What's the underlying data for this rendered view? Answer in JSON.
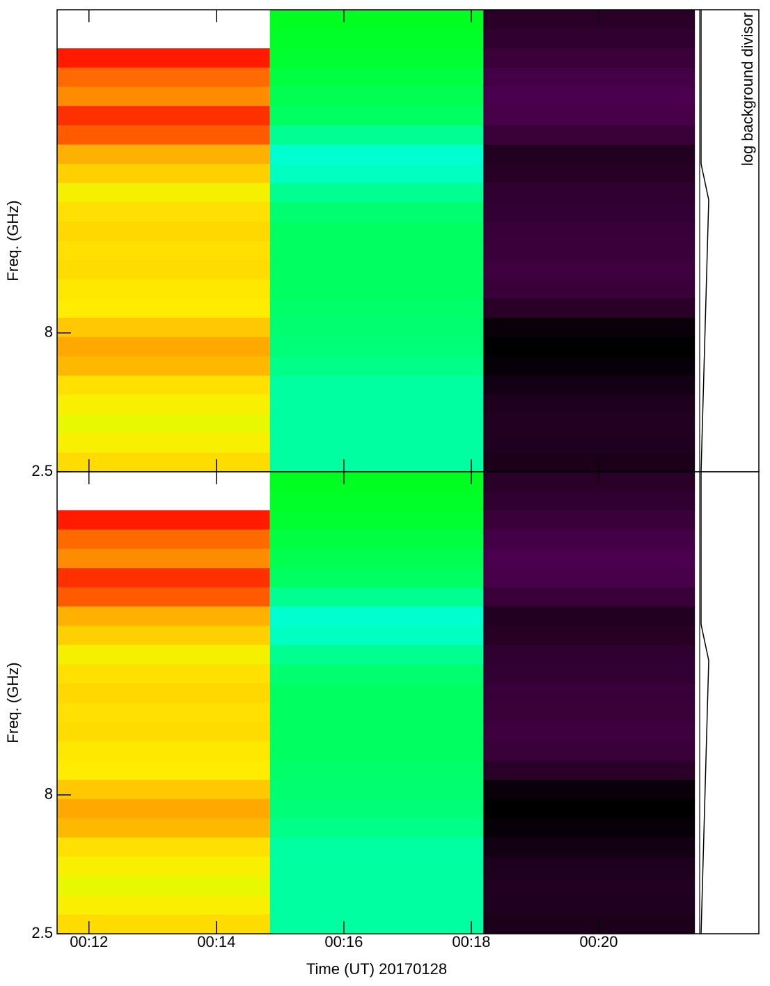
{
  "chart_data": [
    {
      "type": "heatmap",
      "ylabel": "Freq. (GHz)",
      "side_label": "log background divisor",
      "ylim": [
        2.5,
        20.8
      ],
      "yticks": [
        2.5,
        8.0
      ],
      "xlim": [
        11.5,
        21.53
      ],
      "xticks": [
        12,
        14,
        16,
        18,
        20
      ],
      "blocks": [
        {
          "start": 11.5,
          "end": 14.84,
          "colors": [
            null,
            null,
            "#ff1a00",
            "#ff6a00",
            "#ff8c00",
            "#ff3000",
            "#ff5a00",
            "#ffb000",
            "#ffd000",
            "#f4f000",
            "#ffe000",
            "#ffd800",
            "#ffe000",
            "#ffdc00",
            "#ffe800",
            "#ffec00",
            "#ffc800",
            "#ffa800",
            "#ffb800",
            "#ffe000",
            "#f8f000",
            "#e8f800",
            "#f8f000",
            "#ffdc00"
          ]
        },
        {
          "start": 14.84,
          "end": 18.19,
          "colors": [
            "#00ff20",
            "#00ff28",
            "#00ff30",
            "#00ff40",
            "#00ff50",
            "#00ff60",
            "#00ff90",
            "#00ffd0",
            "#00ffc0",
            "#00ff90",
            "#00ff70",
            "#00ff60",
            "#00ff60",
            "#00ff60",
            "#00ff60",
            "#00ff68",
            "#00ff70",
            "#00ff78",
            "#00ff88",
            "#00ffa0",
            "#00ffa0",
            "#00ffa0",
            "#00ffa0",
            "#00ffa0"
          ]
        },
        {
          "start": 18.19,
          "end": 21.51,
          "colors": [
            "#2a0028",
            "#300030",
            "#3a003a",
            "#440046",
            "#4a004e",
            "#480048",
            "#3a003a",
            "#220022",
            "#280026",
            "#300030",
            "#320032",
            "#380038",
            "#3a003a",
            "#3e003e",
            "#3a003a",
            "#2a0028",
            "#0a000a",
            "#000000",
            "#080008",
            "#140014",
            "#1e001e",
            "#220022",
            "#200020",
            "#1c001a"
          ]
        }
      ]
    },
    {
      "type": "heatmap",
      "ylabel": "Freq. (GHz)",
      "xlabel": "Time (UT) 20170128",
      "ylim": [
        2.5,
        20.8
      ],
      "yticks": [
        2.5,
        8.0
      ],
      "xlim": [
        11.5,
        21.53
      ],
      "xticks": [
        {
          "value": 12,
          "label": "00:12"
        },
        {
          "value": 14,
          "label": "00:14"
        },
        {
          "value": 16,
          "label": "00:16"
        },
        {
          "value": 18,
          "label": "00:18"
        },
        {
          "value": 20,
          "label": "00:20"
        }
      ],
      "blocks": [
        {
          "start": 11.5,
          "end": 14.84,
          "colors": [
            null,
            null,
            "#ff1a00",
            "#ff6a00",
            "#ff8c00",
            "#ff3000",
            "#ff5a00",
            "#ffb000",
            "#ffd000",
            "#f4f000",
            "#ffe000",
            "#ffd800",
            "#ffe000",
            "#ffdc00",
            "#ffe800",
            "#ffec00",
            "#ffc800",
            "#ffa800",
            "#ffb800",
            "#ffe000",
            "#f8f000",
            "#e8f800",
            "#f8f000",
            "#ffdc00"
          ]
        },
        {
          "start": 14.84,
          "end": 18.19,
          "colors": [
            "#00ff20",
            "#00ff28",
            "#00ff30",
            "#00ff40",
            "#00ff50",
            "#00ff60",
            "#00ff90",
            "#00ffd0",
            "#00ffc0",
            "#00ff90",
            "#00ff70",
            "#00ff60",
            "#00ff60",
            "#00ff60",
            "#00ff60",
            "#00ff68",
            "#00ff70",
            "#00ff78",
            "#00ff88",
            "#00ffa0",
            "#00ffa0",
            "#00ffa0",
            "#00ffa0",
            "#00ffa0"
          ]
        },
        {
          "start": 18.19,
          "end": 21.51,
          "colors": [
            "#2a0028",
            "#300030",
            "#3a003a",
            "#440046",
            "#4a004e",
            "#480048",
            "#3a003a",
            "#220022",
            "#280026",
            "#300030",
            "#320032",
            "#380038",
            "#3a003a",
            "#3e003e",
            "#3a003a",
            "#2a0028",
            "#0a000a",
            "#000000",
            "#080008",
            "#140014",
            "#1e001e",
            "#220022",
            "#200020",
            "#1c001a"
          ]
        }
      ]
    }
  ]
}
